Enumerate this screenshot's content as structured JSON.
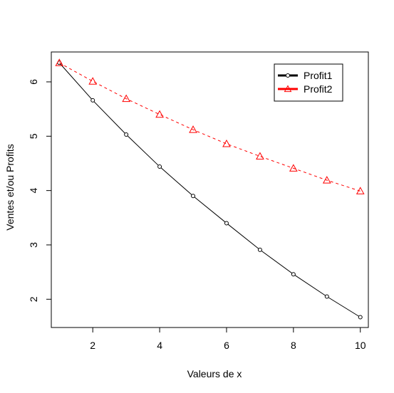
{
  "chart_data": {
    "type": "line",
    "title": "",
    "xlabel": "Valeurs de x",
    "ylabel": "Ventes et/ou Profits",
    "xlim": [
      0.76,
      10.24
    ],
    "ylim": [
      1.48,
      6.55
    ],
    "xticks": [
      2,
      4,
      6,
      8,
      10
    ],
    "yticks": [
      2,
      3,
      4,
      5,
      6
    ],
    "grid": false,
    "legend_position": "top-right",
    "x": [
      1,
      2,
      3,
      4,
      5,
      6,
      7,
      8,
      9,
      10
    ],
    "series": [
      {
        "name": "Profit1",
        "values": [
          6.35,
          5.66,
          5.03,
          4.44,
          3.9,
          3.4,
          2.91,
          2.46,
          2.05,
          1.67
        ],
        "color": "#000000",
        "line_style": "solid",
        "marker": "circle"
      },
      {
        "name": "Profit2",
        "values": [
          6.35,
          6.01,
          5.69,
          5.4,
          5.12,
          4.86,
          4.63,
          4.41,
          4.19,
          3.99
        ],
        "color": "#ff0000",
        "line_style": "dashed",
        "marker": "triangle"
      }
    ]
  }
}
